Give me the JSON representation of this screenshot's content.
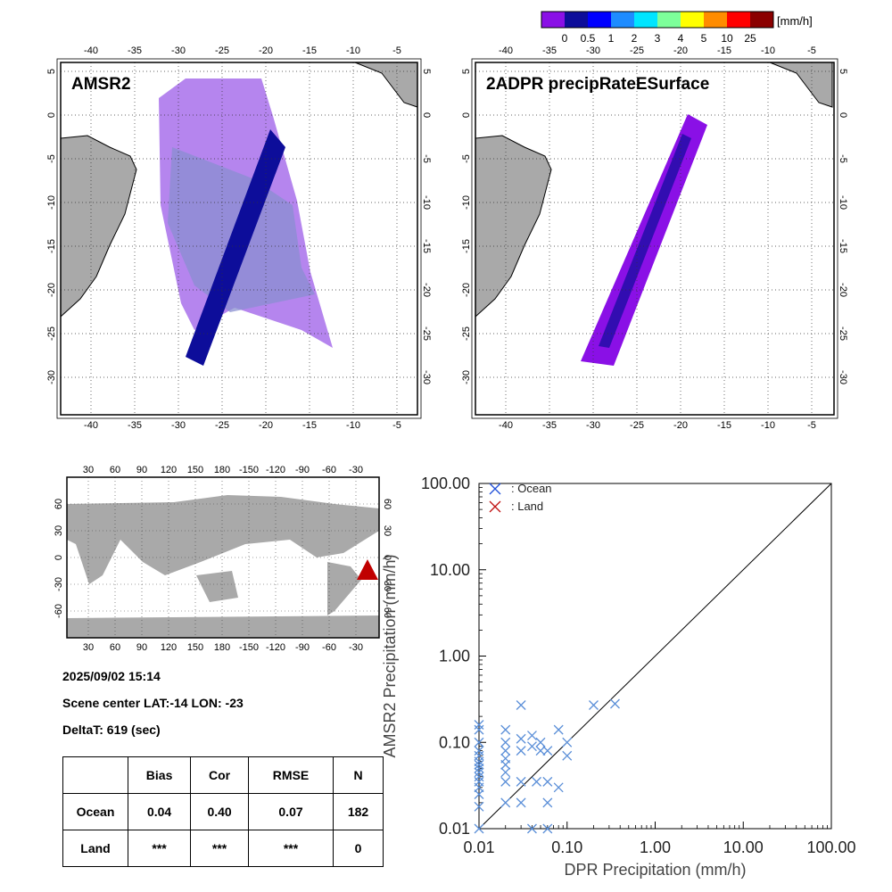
{
  "colorbar": {
    "unit": "[mm/h]",
    "colors": [
      "#8a10e6",
      "#0d0d9a",
      "#0000ff",
      "#1e8cff",
      "#00e5ff",
      "#7dff9a",
      "#ffff00",
      "#ff8c00",
      "#ff0000",
      "#8b0000"
    ],
    "labels": [
      "0",
      "0.5",
      "1",
      "2",
      "3",
      "4",
      "5",
      "10",
      "25"
    ]
  },
  "maps": [
    {
      "id": "amsr2",
      "title": "AMSR2"
    },
    {
      "id": "dpr",
      "title": "2ADPR precipRateESurface"
    }
  ],
  "map_axes": {
    "lon_ticks": [
      "-40",
      "-35",
      "-30",
      "-25",
      "-20",
      "-15",
      "-10",
      "-5"
    ],
    "lat_ticks": [
      "5",
      "0",
      "-5",
      "-10",
      "-15",
      "-20",
      "-25",
      "-30"
    ]
  },
  "globe": {
    "lon_ticks": [
      "30",
      "60",
      "90",
      "120",
      "150",
      "180",
      "-150",
      "-120",
      "-90",
      "-60",
      "-30"
    ],
    "lat_ticks": [
      "60",
      "30",
      "0",
      "-30",
      "-60"
    ]
  },
  "info": {
    "datetime": "2025/09/02 15:14",
    "scene_center": "Scene center LAT:-14   LON: -23",
    "delta": "DeltaT:  619 (sec)"
  },
  "stats": {
    "headers": [
      "",
      "Bias",
      "Cor",
      "RMSE",
      "N"
    ],
    "rows": [
      [
        "Ocean",
        "0.04",
        "0.40",
        "0.07",
        "182"
      ],
      [
        "Land",
        "***",
        "***",
        "***",
        "0"
      ]
    ]
  },
  "chart_data": {
    "type": "scatter",
    "xlabel": "DPR Precipitation (mm/h)",
    "ylabel": "AMSR2 Precipitation (mm/h)",
    "xscale": "log",
    "yscale": "log",
    "xlim": [
      0.01,
      100
    ],
    "ylim": [
      0.01,
      100
    ],
    "x_ticks": [
      "0.01",
      "0.10",
      "1.00",
      "10.00",
      "100.00"
    ],
    "y_ticks": [
      "0.01",
      "0.10",
      "1.00",
      "10.00",
      "100.00"
    ],
    "legend": [
      {
        "label": ": Ocean",
        "color": "#1f4fd8"
      },
      {
        "label": ": Land",
        "color": "#c01010"
      }
    ],
    "legend_position": "top-left",
    "reference_line": "1:1",
    "series": [
      {
        "name": "Ocean",
        "color": "#5b8fd8",
        "points": [
          [
            0.01,
            0.01
          ],
          [
            0.01,
            0.018
          ],
          [
            0.01,
            0.025
          ],
          [
            0.01,
            0.03
          ],
          [
            0.01,
            0.035
          ],
          [
            0.01,
            0.04
          ],
          [
            0.01,
            0.045
          ],
          [
            0.01,
            0.05
          ],
          [
            0.01,
            0.055
          ],
          [
            0.01,
            0.06
          ],
          [
            0.01,
            0.07
          ],
          [
            0.01,
            0.08
          ],
          [
            0.01,
            0.1
          ],
          [
            0.01,
            0.14
          ],
          [
            0.01,
            0.16
          ],
          [
            0.02,
            0.02
          ],
          [
            0.02,
            0.035
          ],
          [
            0.02,
            0.045
          ],
          [
            0.02,
            0.055
          ],
          [
            0.02,
            0.065
          ],
          [
            0.02,
            0.08
          ],
          [
            0.02,
            0.1
          ],
          [
            0.02,
            0.14
          ],
          [
            0.03,
            0.02
          ],
          [
            0.03,
            0.035
          ],
          [
            0.03,
            0.08
          ],
          [
            0.03,
            0.11
          ],
          [
            0.03,
            0.27
          ],
          [
            0.04,
            0.01
          ],
          [
            0.04,
            0.09
          ],
          [
            0.04,
            0.12
          ],
          [
            0.045,
            0.035
          ],
          [
            0.05,
            0.08
          ],
          [
            0.05,
            0.1
          ],
          [
            0.06,
            0.02
          ],
          [
            0.06,
            0.035
          ],
          [
            0.06,
            0.08
          ],
          [
            0.06,
            0.01
          ],
          [
            0.08,
            0.03
          ],
          [
            0.08,
            0.14
          ],
          [
            0.1,
            0.07
          ],
          [
            0.1,
            0.1
          ],
          [
            0.2,
            0.27
          ],
          [
            0.35,
            0.28
          ]
        ]
      },
      {
        "name": "Land",
        "color": "#c01010",
        "points": []
      }
    ]
  }
}
